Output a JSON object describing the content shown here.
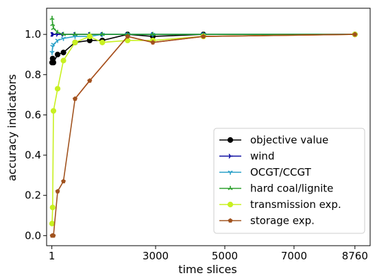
{
  "chart_data": {
    "type": "line",
    "xlabel": "time slices",
    "ylabel": "accuracy indicators",
    "xlim": [
      -150,
      9200
    ],
    "ylim": [
      -0.05,
      1.13
    ],
    "xticks": [
      1,
      3000,
      5000,
      7000,
      8760
    ],
    "yticks": [
      0.0,
      0.2,
      0.4,
      0.6,
      0.8,
      1.0
    ],
    "ytick_labels": [
      "0.0",
      "0.2",
      "0.4",
      "0.6",
      "0.8",
      "1.0"
    ],
    "grid": false,
    "legend_position": "lower-right",
    "series": [
      {
        "name": "objective value",
        "color": "#000000",
        "marker": "circle",
        "x": [
          8,
          24,
          48,
          168,
          336,
          672,
          1095,
          1460,
          2190,
          2920,
          4380,
          8760
        ],
        "y": [
          0.86,
          0.88,
          0.86,
          0.9,
          0.91,
          0.96,
          0.97,
          0.97,
          1.0,
          0.99,
          1.0,
          1.0
        ]
      },
      {
        "name": "wind",
        "color": "#0a0aa0",
        "marker": "tri-right",
        "x": [
          8,
          24,
          48,
          168,
          336,
          672,
          1095,
          1460,
          2190,
          2920,
          4380,
          8760
        ],
        "y": [
          1.0,
          1.0,
          1.0,
          1.0,
          1.0,
          1.0,
          1.0,
          1.0,
          1.0,
          1.0,
          1.0,
          1.0
        ]
      },
      {
        "name": "OCGT/CCGT",
        "color": "#2aa0c8",
        "marker": "tri-down",
        "x": [
          8,
          24,
          48,
          168,
          336,
          672,
          1095,
          1460,
          2190,
          2920,
          4380,
          8760
        ],
        "y": [
          0.91,
          0.94,
          0.95,
          0.97,
          0.98,
          0.99,
          0.99,
          1.0,
          1.0,
          1.0,
          1.0,
          1.0
        ]
      },
      {
        "name": "hard coal/lignite",
        "color": "#2ca02c",
        "marker": "tri-up",
        "x": [
          8,
          24,
          48,
          168,
          336,
          672,
          1095,
          1460,
          2190,
          2920,
          4380,
          8760
        ],
        "y": [
          1.08,
          1.05,
          1.03,
          1.01,
          1.0,
          1.0,
          1.0,
          1.0,
          1.0,
          1.0,
          1.0,
          1.0
        ]
      },
      {
        "name": "transmission exp.",
        "color": "#c8f020",
        "marker": "circle",
        "x": [
          8,
          24,
          48,
          168,
          336,
          672,
          1095,
          1460,
          2190,
          2920,
          4380,
          8760
        ],
        "y": [
          0.06,
          0.14,
          0.62,
          0.73,
          0.87,
          0.96,
          0.99,
          0.96,
          0.97,
          0.97,
          0.99,
          1.0
        ]
      },
      {
        "name": "",
        "color": "#ff3c14",
        "marker": "diamond",
        "x": [
          672,
          1095,
          2190,
          2920,
          4380,
          8760
        ],
        "y": [
          0.68,
          0.77,
          0.99,
          0.96,
          0.99,
          1.0
        ]
      },
      {
        "name": "storage exp.",
        "color": "#a0521e",
        "marker": "pentagon",
        "x": [
          8,
          24,
          48,
          168,
          336,
          672,
          1095,
          2190,
          2920,
          4380,
          8760
        ],
        "y": [
          0.0,
          0.0,
          0.0,
          0.22,
          0.27,
          0.68,
          0.77,
          0.99,
          0.96,
          0.99,
          1.0
        ]
      }
    ]
  }
}
